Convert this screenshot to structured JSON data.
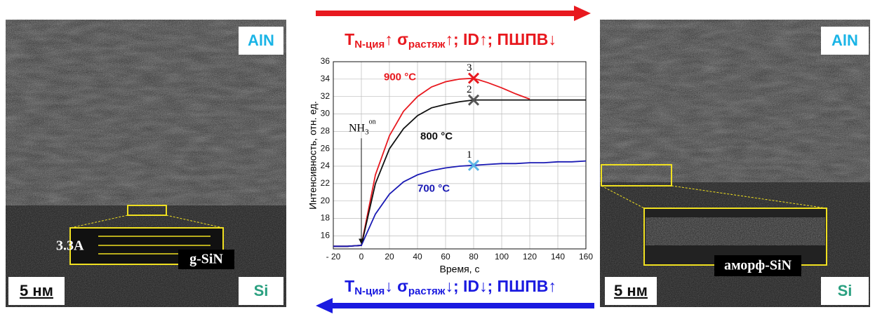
{
  "panels": {
    "left": {
      "top_label": "AlN",
      "bottom_label": "Si",
      "scale": "5 нм",
      "spacing": "3.3A",
      "phase": "g-SiN"
    },
    "right": {
      "top_label": "AlN",
      "bottom_label": "Si",
      "scale": "5 нм",
      "phase": "аморф-SiN"
    }
  },
  "captions": {
    "top": {
      "color": "#e8191f",
      "parts": [
        {
          "text": "T"
        },
        {
          "text": "N-ция",
          "sub": true
        },
        {
          "text": "↑ "
        },
        {
          "text": "σ"
        },
        {
          "text": "растяж",
          "sub": true
        },
        {
          "text": "↑; ID↑; ПШПВ↓"
        }
      ]
    },
    "bottom": {
      "color": "#1a1ae0",
      "parts": [
        {
          "text": "T"
        },
        {
          "text": "N-ция",
          "sub": true
        },
        {
          "text": "↓ "
        },
        {
          "text": "σ"
        },
        {
          "text": "растяж",
          "sub": true
        },
        {
          "text": "↓; ID↓; ПШПВ↑"
        }
      ]
    }
  },
  "chart_data": {
    "type": "line",
    "x_label": "Время, с",
    "y_label": "Интенсивность, отн. ед.",
    "x": [
      -20,
      -10,
      0,
      10,
      20,
      30,
      40,
      50,
      60,
      70,
      80,
      90,
      100,
      110,
      120,
      130,
      140,
      150,
      160
    ],
    "series": [
      {
        "name": "900 °C",
        "color": "#e8191f",
        "values": [
          14.8,
          14.8,
          14.9,
          23,
          27.5,
          30.3,
          32,
          33.1,
          33.7,
          34,
          34.1,
          33.6,
          33,
          32.3,
          31.7,
          null,
          null,
          null,
          null
        ]
      },
      {
        "name": "800 °C",
        "color": "#111111",
        "values": [
          14.8,
          14.8,
          14.9,
          22,
          26,
          28.3,
          29.8,
          30.7,
          31.1,
          31.4,
          31.6,
          31.6,
          31.6,
          31.6,
          31.6,
          31.6,
          31.6,
          31.6,
          31.6
        ]
      },
      {
        "name": "700 °C",
        "color": "#1a1ab4",
        "values": [
          14.8,
          14.8,
          14.9,
          18.5,
          20.8,
          22.2,
          23,
          23.5,
          23.8,
          24,
          24.1,
          24.2,
          24.3,
          24.3,
          24.4,
          24.4,
          24.5,
          24.5,
          24.6
        ]
      }
    ],
    "markers": [
      {
        "label": "3",
        "x": 80,
        "y": 34.1,
        "color": "#e8191f"
      },
      {
        "label": "2",
        "x": 80,
        "y": 31.6,
        "color": "#555555"
      },
      {
        "label": "1",
        "x": 80,
        "y": 24.1,
        "color": "#5ab4e6"
      }
    ],
    "annotation": {
      "text": "NH",
      "sub": "3",
      "sup": "on",
      "x": 0
    },
    "xlim": [
      -20,
      160
    ],
    "ylim": [
      14.5,
      36
    ],
    "xticks": [
      {
        "value": -20,
        "label": "- 20"
      },
      0,
      20,
      40,
      60,
      80,
      100,
      120,
      140,
      160
    ],
    "yticks": [
      16,
      18,
      20,
      22,
      24,
      26,
      28,
      30,
      32,
      34,
      36
    ],
    "grid": true
  }
}
